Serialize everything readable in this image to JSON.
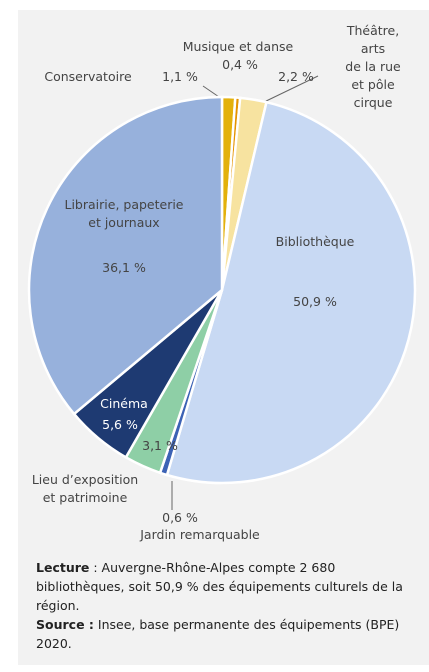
{
  "chart_data": {
    "type": "pie",
    "categories": [
      "Conservatoire",
      "Musique et danse",
      "Théâtre, arts\nde la rue\net pôle cirque",
      "Bibliothèque",
      "Jardin remarquable",
      "Lieu d’exposition\net patrimoine",
      "Cinéma",
      "Librairie, papeterie\net journaux"
    ],
    "values": [
      1.1,
      0.4,
      2.2,
      50.9,
      0.6,
      3.1,
      5.6,
      36.1
    ],
    "value_labels": [
      "1,1 %",
      "0,4 %",
      "2,2 %",
      "50,9 %",
      "0,6 %",
      "3,1 %",
      "5,6 %",
      "36,1 %"
    ],
    "colors": [
      "#e3b10c",
      "#e59400",
      "#f7e3a0",
      "#c8d9f3",
      "#3c62b5",
      "#8ecfa6",
      "#1e3a72",
      "#97b1dc"
    ]
  },
  "notes": {
    "lecture_label": "Lecture",
    "lecture_text": " : Auvergne-Rhône-Alpes compte 2 680 bibliothèques, soit 50,9 % des équipements culturels de la région.",
    "source_label": "Source :",
    "source_text": " Insee, base permanente des équipements (BPE) 2020."
  }
}
